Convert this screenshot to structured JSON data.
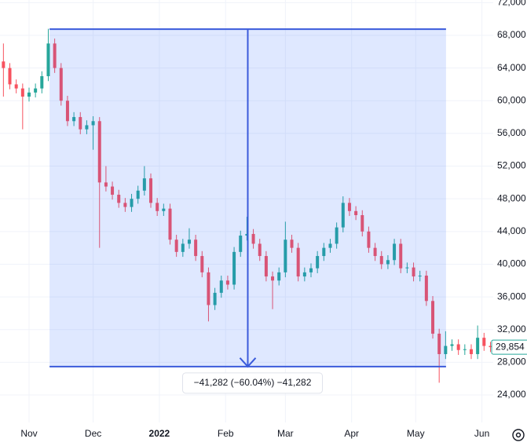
{
  "chart_data": {
    "type": "candlestick",
    "up_color": "#26a69a",
    "down_color": "#f7525f",
    "grid": true,
    "xlim": [
      -13.6,
      217.3
    ],
    "ylim": [
      20640,
      72320
    ],
    "yticks": [
      {
        "value": 24000,
        "label": "24,000"
      },
      {
        "value": 28000,
        "label": "28,000"
      },
      {
        "value": 32000,
        "label": "32,000"
      },
      {
        "value": 36000,
        "label": "36,000"
      },
      {
        "value": 40000,
        "label": "40,000"
      },
      {
        "value": 44000,
        "label": "44,000"
      },
      {
        "value": 48000,
        "label": "48,000"
      },
      {
        "value": 52000,
        "label": "52,000"
      },
      {
        "value": 56000,
        "label": "56,000"
      },
      {
        "value": 60000,
        "label": "60,000"
      },
      {
        "value": 64000,
        "label": "64,000"
      },
      {
        "value": 68000,
        "label": "68,000"
      },
      {
        "value": 72000,
        "label": "72,000"
      }
    ],
    "xticks": [
      {
        "value": 0,
        "label": "Nov"
      },
      {
        "value": 30,
        "label": "Dec"
      },
      {
        "value": 61,
        "label": "2022"
      },
      {
        "value": 92,
        "label": "Feb"
      },
      {
        "value": 120,
        "label": "Mar"
      },
      {
        "value": 151,
        "label": "Apr"
      },
      {
        "value": 181,
        "label": "May"
      },
      {
        "value": 212,
        "label": "Jun"
      }
    ],
    "x": [
      -12,
      -9,
      -6,
      -3,
      0,
      3,
      6,
      9,
      12,
      15,
      18,
      21,
      24,
      27,
      30,
      33,
      36,
      39,
      42,
      45,
      48,
      51,
      54,
      57,
      60,
      63,
      66,
      69,
      72,
      75,
      78,
      81,
      84,
      87,
      90,
      93,
      96,
      99,
      102,
      105,
      108,
      111,
      114,
      117,
      120,
      123,
      126,
      129,
      132,
      135,
      138,
      141,
      144,
      147,
      150,
      153,
      156,
      159,
      162,
      165,
      168,
      171,
      174,
      177,
      180,
      183,
      186,
      189,
      192,
      195,
      198,
      201,
      204,
      207,
      210,
      213,
      216
    ],
    "open": [
      64800,
      64000,
      62000,
      61500,
      60500,
      61000,
      61500,
      63000,
      67000,
      64000,
      60000,
      57500,
      58000,
      56500,
      57000,
      57500,
      50000,
      49500,
      48500,
      47500,
      47000,
      48000,
      49000,
      50500,
      47500,
      46500,
      46800,
      43000,
      41500,
      42500,
      43000,
      41000,
      39000,
      35000,
      36500,
      38000,
      37500,
      41500,
      43500,
      43700,
      42500,
      41000,
      38500,
      38000,
      39000,
      43000,
      42000,
      38500,
      39000,
      39500,
      41000,
      42000,
      42500,
      44500,
      47500,
      46500,
      46000,
      44000,
      42000,
      41000,
      40000,
      40500,
      42500,
      39500,
      39600,
      38500,
      38600,
      35500,
      31500,
      29000,
      30000,
      30200,
      29500,
      29600,
      29000,
      31000,
      30000
    ],
    "high": [
      67000,
      64600,
      62600,
      62100,
      61600,
      62100,
      63600,
      68800,
      67600,
      64600,
      60600,
      58600,
      58600,
      57600,
      58100,
      58000,
      52000,
      50100,
      49100,
      48100,
      48600,
      49600,
      52000,
      51100,
      48100,
      47400,
      47400,
      43600,
      43100,
      44400,
      43600,
      41600,
      39600,
      37100,
      38600,
      38600,
      42100,
      44100,
      45800,
      44300,
      43100,
      41600,
      39100,
      39600,
      45200,
      43600,
      42600,
      39600,
      40100,
      41600,
      42600,
      43100,
      45100,
      48300,
      48100,
      47100,
      46600,
      44600,
      42600,
      41600,
      41100,
      43100,
      43100,
      40200,
      40200,
      39200,
      39200,
      36100,
      32100,
      31800,
      30800,
      30800,
      30200,
      30200,
      32500,
      31600,
      30500
    ],
    "low": [
      60500,
      61400,
      60900,
      56500,
      59900,
      60400,
      60900,
      62400,
      63400,
      59400,
      56900,
      56900,
      55900,
      55900,
      54000,
      42000,
      48900,
      47900,
      46900,
      46400,
      46400,
      47400,
      48400,
      46900,
      45900,
      45900,
      42400,
      40900,
      40900,
      41900,
      40400,
      38400,
      33000,
      34400,
      35900,
      36900,
      36900,
      40900,
      42900,
      41900,
      40400,
      37900,
      34500,
      37400,
      38400,
      41400,
      37900,
      37900,
      38400,
      38900,
      40400,
      41400,
      41900,
      43900,
      45900,
      45400,
      43400,
      41400,
      40400,
      39400,
      39400,
      39900,
      38900,
      38900,
      37900,
      37900,
      34900,
      30900,
      25500,
      28400,
      29400,
      28900,
      28900,
      28400,
      28400,
      29400,
      29254
    ],
    "close": [
      64000,
      62000,
      61500,
      60500,
      61000,
      61500,
      63000,
      67000,
      64000,
      60000,
      57500,
      58000,
      56500,
      57000,
      57500,
      50000,
      49500,
      48500,
      47500,
      47000,
      48000,
      49000,
      50500,
      47500,
      46500,
      46800,
      43000,
      41500,
      42500,
      43000,
      41000,
      39000,
      35000,
      36500,
      38000,
      37500,
      41500,
      43500,
      43700,
      42500,
      41000,
      38500,
      38000,
      39000,
      43000,
      42000,
      38500,
      39000,
      39500,
      41000,
      42000,
      42500,
      44500,
      47500,
      46500,
      46000,
      44000,
      42000,
      41000,
      40000,
      40500,
      42500,
      39500,
      39600,
      38500,
      38600,
      35500,
      31500,
      29000,
      30000,
      30200,
      29500,
      29600,
      29000,
      31000,
      30000,
      29854
    ],
    "last_price": {
      "value": 29854,
      "label": "29,854"
    },
    "measure": {
      "from": 68758,
      "to": 27476,
      "x_from": 9.6,
      "x_to": 195.2,
      "label": "−41,282 (−60.04%) −41,282"
    }
  }
}
